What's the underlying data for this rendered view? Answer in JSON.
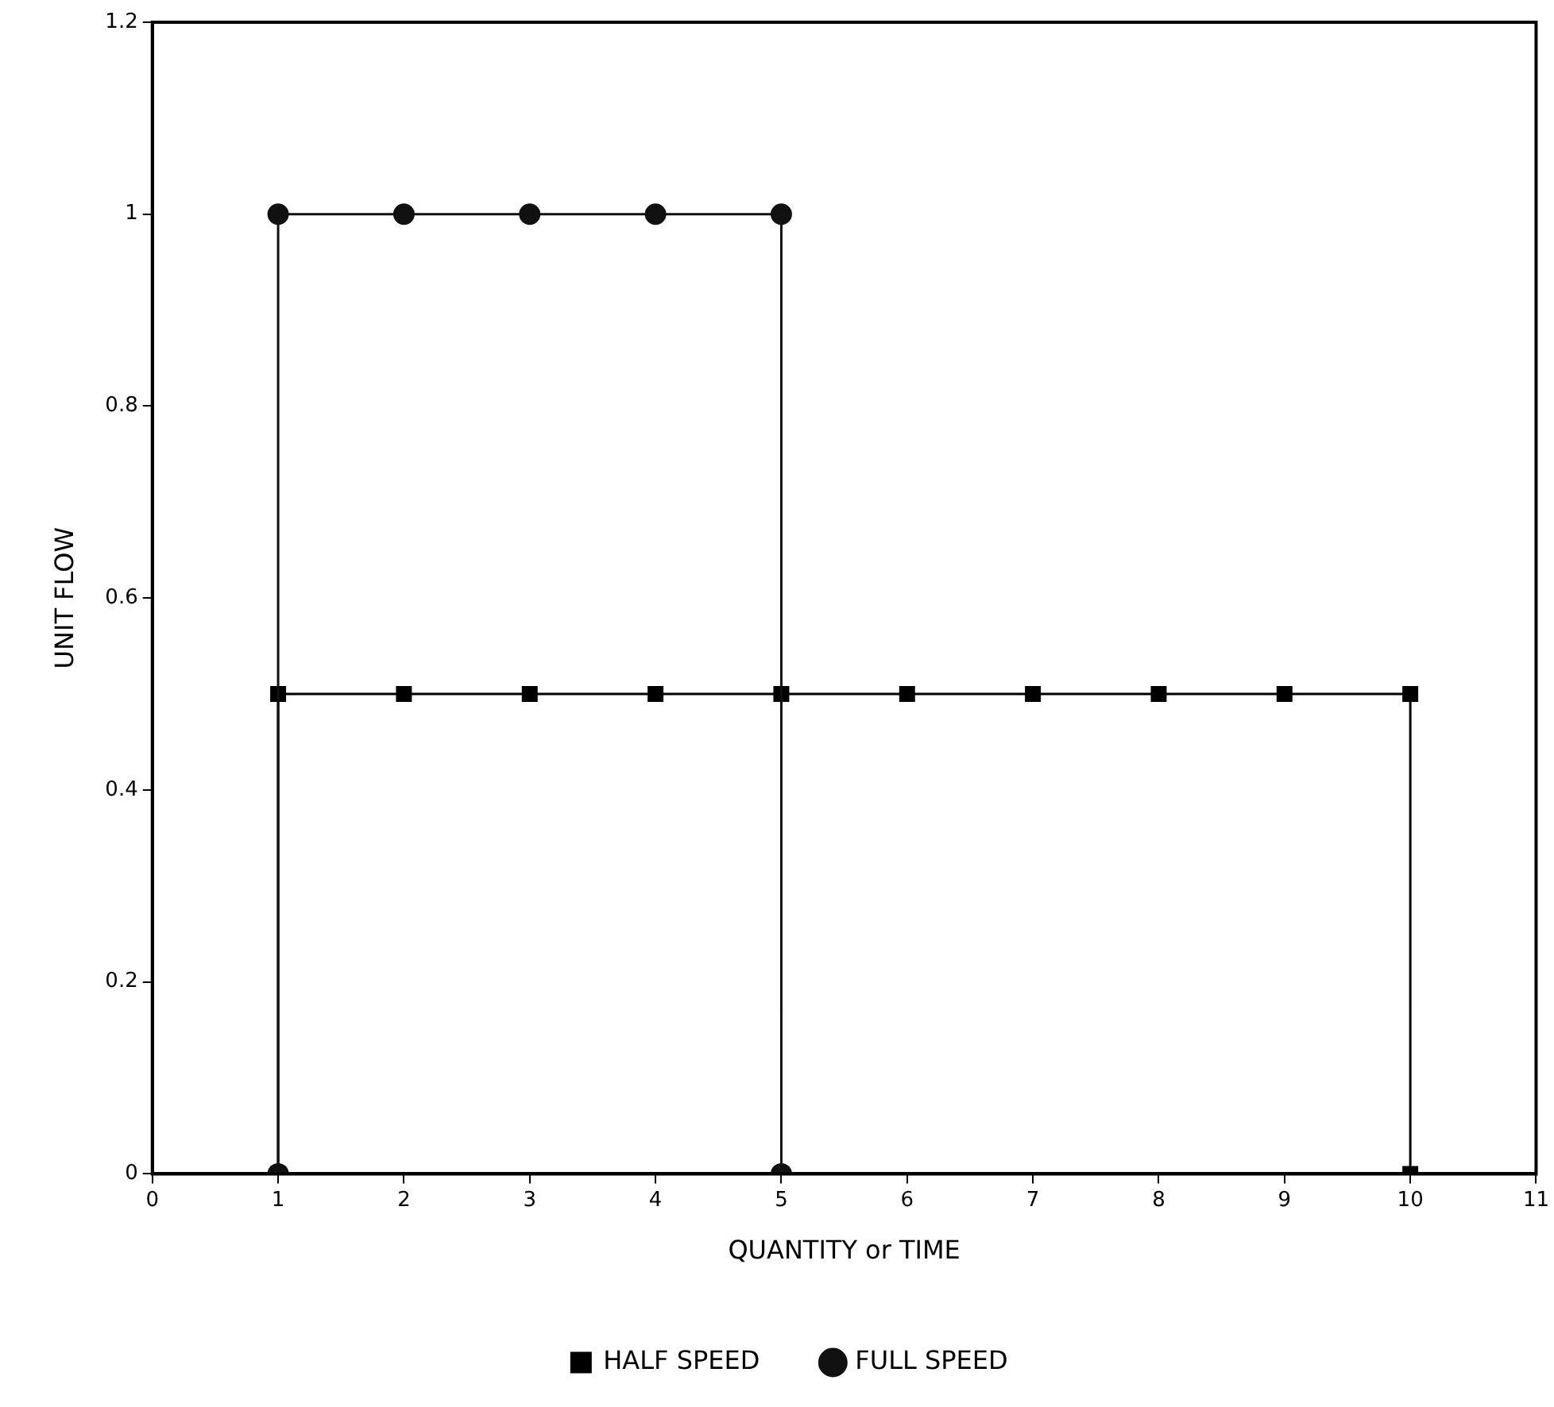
{
  "chart_data": {
    "type": "line",
    "xlabel": "QUANTITY or TIME",
    "ylabel": "UNIT FLOW",
    "series": [
      {
        "name": "HALF SPEED",
        "color": "#000000",
        "marker": "square",
        "x": [
          1,
          1,
          2,
          3,
          4,
          5,
          6,
          7,
          8,
          9,
          10,
          10
        ],
        "values": [
          0,
          0.5,
          0.5,
          0.5,
          0.5,
          0.5,
          0.5,
          0.5,
          0.5,
          0.5,
          0.5,
          0
        ]
      },
      {
        "name": "FULL SPEED",
        "color": "#111111",
        "marker": "circle",
        "x": [
          1,
          1,
          2,
          3,
          4,
          5,
          5
        ],
        "values": [
          0,
          1,
          1,
          1,
          1,
          1,
          0
        ]
      }
    ],
    "xlim": [
      0,
      11
    ],
    "xticks": [
      0,
      1,
      2,
      3,
      4,
      5,
      6,
      7,
      8,
      9,
      10,
      11
    ],
    "ylim": [
      0,
      1.2
    ],
    "yticks": [
      0,
      0.2,
      0.4,
      0.6,
      0.8,
      1,
      1.2
    ],
    "grid": false,
    "legend": "bottom",
    "line_style": "solid"
  }
}
